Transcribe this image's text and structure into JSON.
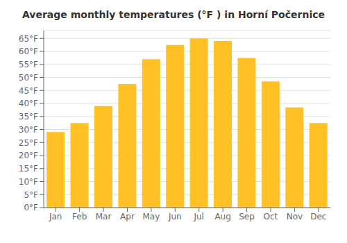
{
  "chart_data": {
    "type": "bar",
    "title": "Average monthly temperatures (°F ) in Horní Počernice",
    "categories": [
      "Jan",
      "Feb",
      "Mar",
      "Apr",
      "May",
      "Jun",
      "Jul",
      "Aug",
      "Sep",
      "Oct",
      "Nov",
      "Dec"
    ],
    "values": [
      29,
      32.5,
      39,
      47.5,
      57,
      62.5,
      65,
      64,
      57.5,
      48.5,
      38.5,
      32.5
    ],
    "color": "#FFC125",
    "ylim": [
      0,
      68
    ],
    "yticks": [
      {
        "value": 0,
        "label": "0°F"
      },
      {
        "value": 5,
        "label": "5°F"
      },
      {
        "value": 10,
        "label": "10°F"
      },
      {
        "value": 15,
        "label": "15°F"
      },
      {
        "value": 20,
        "label": "20°F"
      },
      {
        "value": 25,
        "label": "25°F"
      },
      {
        "value": 30,
        "label": "30°F"
      },
      {
        "value": 35,
        "label": "35°F"
      },
      {
        "value": 40,
        "label": "40°F"
      },
      {
        "value": 45,
        "label": "45°F"
      },
      {
        "value": 50,
        "label": "50°F"
      },
      {
        "value": 55,
        "label": "55°F"
      },
      {
        "value": 60,
        "label": "60°F"
      },
      {
        "value": 65,
        "label": "65°F"
      }
    ],
    "grid": true
  }
}
